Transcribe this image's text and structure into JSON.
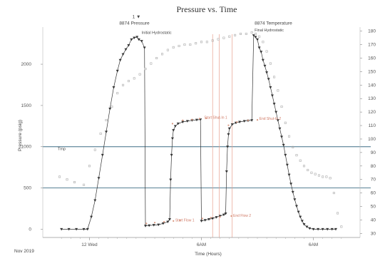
{
  "chart_data": {
    "type": "line",
    "title": "Pressure vs. Time",
    "xlabel": "Time (Hours)",
    "ylabel": "Pressure (psig)",
    "y2label": "",
    "date_label": "Nov 2019",
    "x_ticks": [
      {
        "x": 5.0,
        "label": "12 Wed"
      },
      {
        "x": 17.0,
        "label": "6AM"
      },
      {
        "x": 29.0,
        "label": "6AM"
      }
    ],
    "xlim": [
      0,
      34
    ],
    "ylim": [
      -100,
      2450
    ],
    "yticks": [
      0,
      500,
      1000,
      1500,
      2000
    ],
    "y2lim": [
      27,
      183
    ],
    "y2ticks": [
      30,
      40,
      50,
      60,
      70,
      80,
      90,
      100,
      110,
      120,
      130,
      140,
      150,
      160,
      170,
      180
    ],
    "hlines_y": [
      1000,
      500
    ],
    "vlines_x": [
      18.2,
      18.9,
      20.3
    ],
    "series": [
      {
        "name": "",
        "color": "#333333",
        "marker": "triangle",
        "points": [
          [
            2.0,
            0
          ],
          [
            2.8,
            0
          ],
          [
            3.6,
            0
          ],
          [
            4.4,
            0
          ],
          [
            4.8,
            0
          ],
          [
            5.2,
            150
          ],
          [
            5.6,
            350
          ],
          [
            6.0,
            620
          ],
          [
            6.4,
            900
          ],
          [
            6.8,
            1180
          ],
          [
            7.2,
            1460
          ],
          [
            7.6,
            1720
          ],
          [
            8.0,
            1920
          ],
          [
            8.3,
            2050
          ],
          [
            8.6,
            2120
          ],
          [
            8.9,
            2180
          ],
          [
            9.2,
            2230
          ],
          [
            9.5,
            2300
          ],
          [
            9.8,
            2320
          ],
          [
            10.1,
            2330
          ],
          [
            10.3,
            2300
          ],
          [
            10.6,
            2280
          ],
          [
            10.9,
            2200
          ],
          [
            11.0,
            40
          ],
          [
            11.4,
            45
          ],
          [
            11.9,
            50
          ],
          [
            12.4,
            55
          ],
          [
            12.9,
            70
          ],
          [
            13.4,
            90
          ],
          [
            13.6,
            120
          ],
          [
            13.7,
            600
          ],
          [
            13.8,
            900
          ],
          [
            13.9,
            1100
          ],
          [
            14.0,
            1200
          ],
          [
            14.2,
            1250
          ],
          [
            14.5,
            1280
          ],
          [
            15.0,
            1300
          ],
          [
            15.5,
            1310
          ],
          [
            16.0,
            1320
          ],
          [
            16.5,
            1325
          ],
          [
            16.9,
            1330
          ],
          [
            17.0,
            100
          ],
          [
            17.4,
            110
          ],
          [
            17.8,
            120
          ],
          [
            18.2,
            130
          ],
          [
            18.6,
            145
          ],
          [
            19.0,
            160
          ],
          [
            19.4,
            175
          ],
          [
            19.6,
            190
          ],
          [
            19.7,
            700
          ],
          [
            19.8,
            1000
          ],
          [
            19.9,
            1150
          ],
          [
            20.0,
            1220
          ],
          [
            20.3,
            1270
          ],
          [
            20.7,
            1290
          ],
          [
            21.1,
            1300
          ],
          [
            21.6,
            1310
          ],
          [
            22.0,
            1315
          ],
          [
            22.4,
            1320
          ],
          [
            22.6,
            2350
          ],
          [
            22.8,
            2330
          ],
          [
            23.0,
            2300
          ],
          [
            23.2,
            2200
          ],
          [
            23.4,
            2150
          ],
          [
            23.6,
            2050
          ],
          [
            23.8,
            1980
          ],
          [
            24.0,
            1900
          ],
          [
            24.2,
            1820
          ],
          [
            24.4,
            1720
          ],
          [
            24.6,
            1620
          ],
          [
            24.8,
            1520
          ],
          [
            25.0,
            1420
          ],
          [
            25.2,
            1320
          ],
          [
            25.4,
            1220
          ],
          [
            25.6,
            1120
          ],
          [
            25.8,
            1020
          ],
          [
            26.0,
            900
          ],
          [
            26.2,
            780
          ],
          [
            26.4,
            660
          ],
          [
            26.6,
            550
          ],
          [
            26.8,
            450
          ],
          [
            27.0,
            360
          ],
          [
            27.2,
            280
          ],
          [
            27.4,
            210
          ],
          [
            27.6,
            150
          ],
          [
            27.8,
            100
          ],
          [
            28.0,
            60
          ],
          [
            28.3,
            30
          ],
          [
            28.6,
            10
          ],
          [
            29.0,
            0
          ],
          [
            29.5,
            0
          ],
          [
            30.0,
            0
          ],
          [
            30.5,
            0
          ],
          [
            31.0,
            0
          ],
          [
            31.4,
            0
          ]
        ]
      },
      {
        "name": "",
        "color": "#d9967f",
        "marker": "dot",
        "points": [
          [
            11.1,
            70
          ],
          [
            12.0,
            80
          ],
          [
            13.0,
            90
          ],
          [
            14.0,
            100
          ],
          [
            14.7,
            110
          ],
          [
            17.1,
            130
          ],
          [
            18.0,
            140
          ],
          [
            19.0,
            150
          ],
          [
            20.2,
            160
          ],
          [
            13.9,
            1280
          ],
          [
            15.0,
            1320
          ],
          [
            16.0,
            1330
          ],
          [
            16.8,
            1340
          ],
          [
            17.5,
            1345
          ],
          [
            19.9,
            1260
          ],
          [
            20.8,
            1300
          ],
          [
            22.0,
            1320
          ],
          [
            23.0,
            1325
          ]
        ]
      },
      {
        "name": "",
        "color": "#aaaaaa",
        "marker": "square",
        "axis": "y2",
        "points": [
          [
            1.8,
            72
          ],
          [
            2.6,
            70
          ],
          [
            3.4,
            68
          ],
          [
            4.4,
            66
          ],
          [
            5.0,
            80
          ],
          [
            5.6,
            92
          ],
          [
            6.2,
            104
          ],
          [
            6.8,
            114
          ],
          [
            7.4,
            124
          ],
          [
            8.0,
            134
          ],
          [
            8.6,
            140
          ],
          [
            9.2,
            143
          ],
          [
            9.8,
            145
          ],
          [
            10.4,
            148
          ],
          [
            11.0,
            152
          ],
          [
            11.6,
            156
          ],
          [
            12.2,
            160
          ],
          [
            12.8,
            163
          ],
          [
            13.4,
            166
          ],
          [
            14.0,
            168
          ],
          [
            14.6,
            169
          ],
          [
            15.2,
            170
          ],
          [
            15.8,
            170
          ],
          [
            16.4,
            171
          ],
          [
            17.0,
            172
          ],
          [
            17.6,
            172
          ],
          [
            18.2,
            173
          ],
          [
            18.8,
            174
          ],
          [
            19.4,
            175
          ],
          [
            20.0,
            176
          ],
          [
            20.6,
            177
          ],
          [
            21.2,
            178
          ],
          [
            21.8,
            178
          ],
          [
            22.4,
            179
          ],
          [
            22.8,
            178
          ],
          [
            23.2,
            176
          ],
          [
            23.6,
            172
          ],
          [
            24.0,
            165
          ],
          [
            24.4,
            156
          ],
          [
            24.8,
            146
          ],
          [
            25.2,
            136
          ],
          [
            25.6,
            124
          ],
          [
            26.0,
            112
          ],
          [
            26.4,
            102
          ],
          [
            26.8,
            94
          ],
          [
            27.2,
            88
          ],
          [
            27.6,
            84
          ],
          [
            28.0,
            80
          ],
          [
            28.4,
            77
          ],
          [
            28.8,
            75
          ],
          [
            29.2,
            74
          ],
          [
            29.6,
            73
          ],
          [
            30.0,
            72
          ],
          [
            30.4,
            72
          ],
          [
            30.8,
            71
          ],
          [
            31.2,
            60
          ],
          [
            31.6,
            45
          ],
          [
            32.0,
            35
          ]
        ]
      }
    ],
    "annotations": [
      {
        "text": "1 ▼",
        "x": 9.6,
        "y": 2560,
        "style": "small"
      },
      {
        "text": "8874 Pressure",
        "x": 8.2,
        "y": 2480,
        "style": "small"
      },
      {
        "text": "Initial Hydrostatic",
        "x": 10.6,
        "y": 2370,
        "style": "ann"
      },
      {
        "text": "8874 Temperature",
        "x": 22.7,
        "y": 2480,
        "style": "small"
      },
      {
        "text": "Final Hydrostatic",
        "x": 22.7,
        "y": 2400,
        "style": "ann"
      },
      {
        "text": "Start Shut-In 1",
        "x": 17.3,
        "y": 1340,
        "style": "annr"
      },
      {
        "text": "End Shut-In 2",
        "x": 23.2,
        "y": 1325,
        "style": "annr"
      },
      {
        "text": "Start Flow 1",
        "x": 14.2,
        "y": 95,
        "style": "annr"
      },
      {
        "text": "End Flow 2",
        "x": 20.4,
        "y": 150,
        "style": "annr"
      },
      {
        "text": "Tmp",
        "x": 1.6,
        "y": 960,
        "style": "ann"
      }
    ]
  }
}
